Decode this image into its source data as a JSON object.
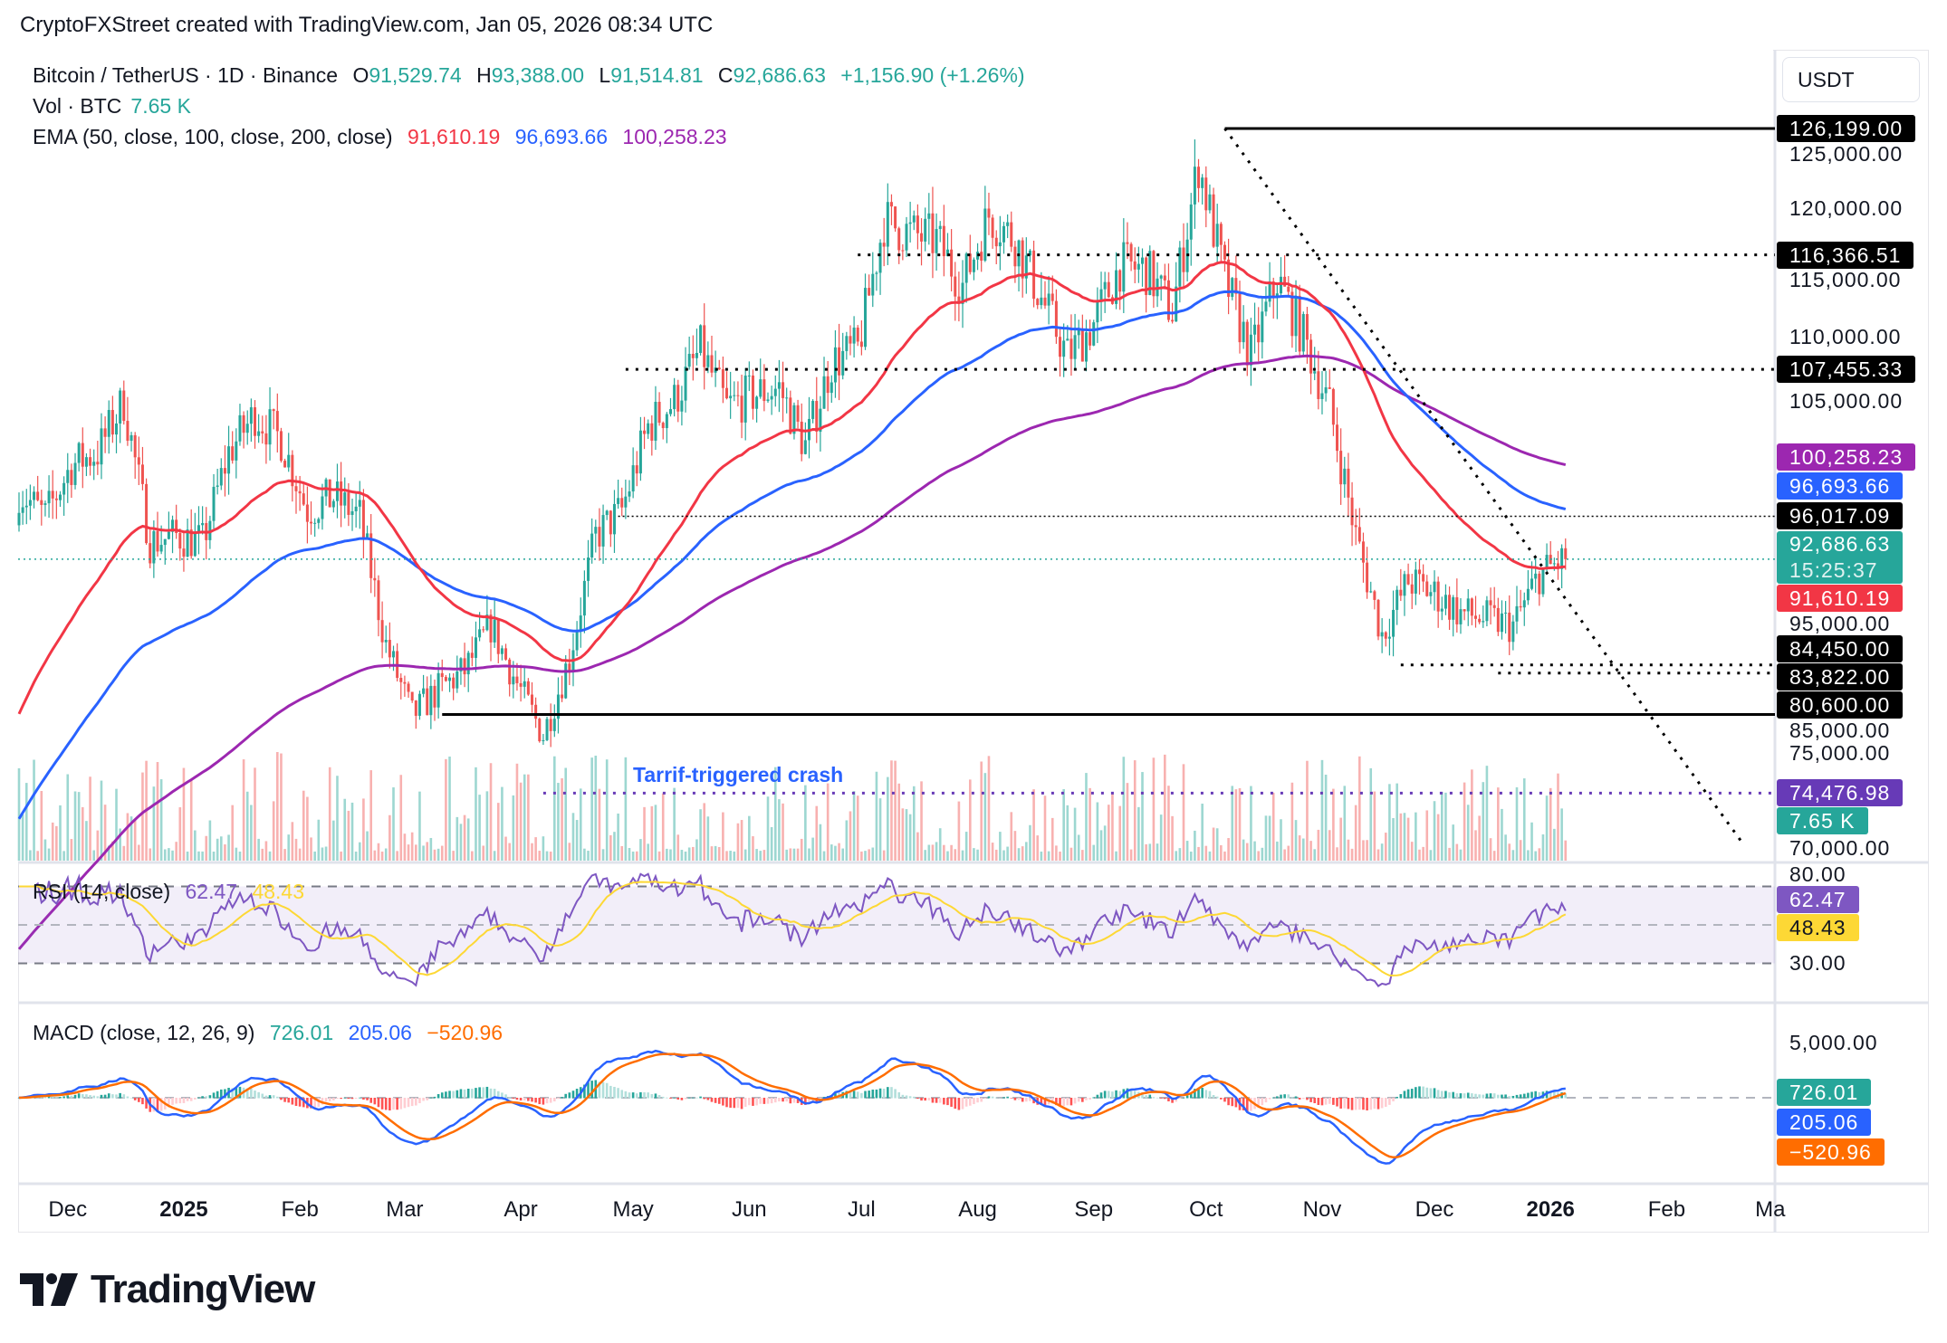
{
  "credit": "CryptoFXStreet created with TradingView.com, Jan 05, 2026 08:34 UTC",
  "currency_button": "USDT",
  "legend": {
    "symbol": "Bitcoin / TetherUS · 1D · Binance",
    "o_label": "O",
    "o": "91,529.74",
    "h_label": "H",
    "h": "93,388.00",
    "l_label": "L",
    "l": "91,514.81",
    "c_label": "C",
    "c": "92,686.63",
    "change": "+1,156.90 (+1.26%)",
    "vol_label": "Vol · BTC",
    "vol": "7.65 K",
    "ema_label": "EMA (50, close, 100, close, 200, close)",
    "ema50": "91,610.19",
    "ema100": "96,693.66",
    "ema200": "100,258.23",
    "rsi_label": "RSI (14, close)",
    "rsi": "62.47",
    "rsi_ma": "48.43",
    "macd_label": "MACD (close, 12, 26, 9)",
    "macd_hist": "726.01",
    "macd": "205.06",
    "macd_signal": "−520.96"
  },
  "annotation": "Tarrif-triggered crash",
  "logo_text": "TradingView",
  "colors": {
    "up": "#26a69a",
    "down": "#ef5350",
    "ema50": "#f23645",
    "ema100": "#2962ff",
    "ema200": "#9c27b0",
    "rsi": "#7e57c2",
    "rsi_ma": "#fdd835",
    "macd": "#2962ff",
    "signal": "#ff6d00",
    "level": "#000000",
    "crash": "#673ab7"
  },
  "chart_data": {
    "type": "candlestick",
    "start_date": "2024-11-18",
    "interval_days": 7,
    "weekly_close": [
      98000,
      96000,
      100000,
      101000,
      105000,
      94000,
      94500,
      94000,
      101000,
      104000,
      102000,
      96500,
      97500,
      96000,
      86000,
      80500,
      82500,
      84000,
      87500,
      83000,
      79000,
      85000,
      94500,
      96500,
      103000,
      105000,
      109000,
      104500,
      105500,
      106000,
      101500,
      108000,
      109000,
      119000,
      118000,
      117500,
      114000,
      119500,
      117500,
      113000,
      108500,
      111000,
      115500,
      115200,
      112000,
      123500,
      114500,
      108500,
      114500,
      110000,
      104500,
      94500,
      86800,
      91000,
      90000,
      88500,
      88000,
      87500,
      91500,
      92686.63
    ],
    "y_ticks": [
      "125,000.00",
      "120,000.00",
      "115,000.00",
      "110,000.00",
      "105,000.00",
      "95,000.00",
      "85,000.00",
      "75,000.00",
      "70,000.00"
    ],
    "y_tick_values": [
      125000,
      120000,
      115000,
      110000,
      105000,
      95000,
      85000,
      75000,
      70000
    ],
    "x_ticks": [
      {
        "label": "Dec",
        "date": "2024-12-01"
      },
      {
        "label": "2025",
        "date": "2025-01-01",
        "bold": true
      },
      {
        "label": "Feb",
        "date": "2025-02-01"
      },
      {
        "label": "Mar",
        "date": "2025-03-01"
      },
      {
        "label": "Apr",
        "date": "2025-04-01"
      },
      {
        "label": "May",
        "date": "2025-05-01"
      },
      {
        "label": "Jun",
        "date": "2025-06-01"
      },
      {
        "label": "Jul",
        "date": "2025-07-01"
      },
      {
        "label": "Aug",
        "date": "2025-08-01"
      },
      {
        "label": "Sep",
        "date": "2025-09-01"
      },
      {
        "label": "Oct",
        "date": "2025-10-01"
      },
      {
        "label": "Nov",
        "date": "2025-11-01"
      },
      {
        "label": "Dec",
        "date": "2025-12-01"
      },
      {
        "label": "2026",
        "date": "2026-01-01",
        "bold": true
      },
      {
        "label": "Feb",
        "date": "2026-02-01"
      },
      {
        "label": "Ma",
        "date": "2026-03-01"
      }
    ],
    "levels": [
      {
        "price": 126199.0,
        "label": "126,199.00",
        "style": "solid",
        "from": "2025-10-06",
        "color": "#000000"
      },
      {
        "price": 116366.51,
        "label": "116,366.51",
        "style": "dotted",
        "from": "2025-06-30",
        "color": "#000000"
      },
      {
        "price": 107455.33,
        "label": "107,455.33",
        "style": "dotted",
        "from": "2025-04-29",
        "color": "#000000"
      },
      {
        "price": 96017.09,
        "label": "96,017.09",
        "style": "thin",
        "from": "2025-04-27",
        "color": "#000000"
      },
      {
        "price": 84450.0,
        "label": "84,450.00",
        "style": "dotted",
        "from": "2025-11-22",
        "color": "#000000"
      },
      {
        "price": 83822.0,
        "label": "83,822.00",
        "style": "dotted",
        "from": "2025-12-18",
        "color": "#000000"
      },
      {
        "price": 80600.0,
        "label": "80,600.00",
        "style": "solid",
        "from": "2025-03-11",
        "color": "#000000"
      },
      {
        "price": 74476.98,
        "label": "74,476.98",
        "style": "dotted",
        "from": "2025-04-07",
        "color": "#673ab7"
      }
    ],
    "trendline": {
      "from": {
        "date": "2025-10-06",
        "price": 126199
      },
      "to": {
        "date": "2026-02-21",
        "price": 70700
      }
    },
    "price_labels": [
      {
        "price": 100258.23,
        "label": "100,258.23",
        "color": "#9c27b0"
      },
      {
        "price": 96693.66,
        "label": "96,693.66",
        "color": "#2962ff"
      },
      {
        "price": 92686.63,
        "label": "92,686.63",
        "sub": "15:25:37",
        "color": "#26a69a"
      },
      {
        "price": 91610.19,
        "label": "91,610.19",
        "color": "#f23645"
      }
    ],
    "volume_label": "7.65 K",
    "rsi_ticks": [
      {
        "value": 80,
        "label": "80.00"
      },
      {
        "value": 30,
        "label": "30.00"
      }
    ],
    "rsi_bands": [
      70,
      50,
      30
    ],
    "rsi_labels": [
      {
        "label": "62.47",
        "color": "#7e57c2",
        "text": "#fff"
      },
      {
        "label": "48.43",
        "color": "#fdd835",
        "text": "#131722"
      }
    ],
    "macd_ticks": [
      {
        "value": 5000,
        "label": "5,000.00"
      }
    ],
    "macd_labels": [
      {
        "label": "726.01",
        "color": "#26a69a"
      },
      {
        "label": "205.06",
        "color": "#2962ff"
      },
      {
        "label": "−520.96",
        "color": "#ff6d00"
      }
    ]
  }
}
